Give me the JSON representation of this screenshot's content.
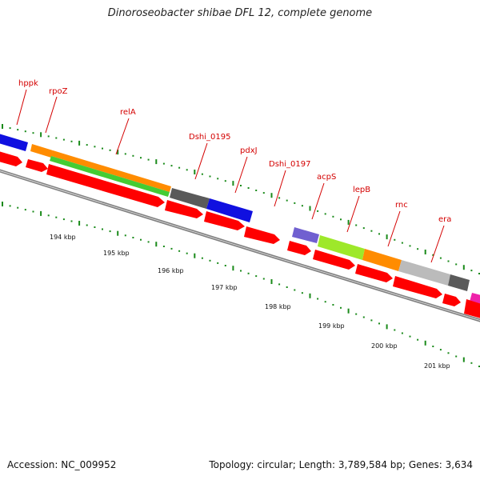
{
  "title": "Dinoroseobacter shibae DFL 12, complete genome",
  "footer": {
    "accession": "Accession: NC_009952",
    "summary": "Topology: circular; Length: 3,789,584 bp; Genes: 3,634"
  },
  "gene_labels": [
    "hppk",
    "rpoZ",
    "relA",
    "Dshi_0195",
    "pdxJ",
    "Dshi_0197",
    "acpS",
    "lepB",
    "rnc",
    "era"
  ],
  "kbp_labels": [
    "194 kbp",
    "195 kbp",
    "196 kbp",
    "197 kbp",
    "198 kbp",
    "199 kbp",
    "200 kbp",
    "201 kbp"
  ],
  "colors": {
    "cds": "#ff0000",
    "label": "#d40000",
    "tick": "#1a8a1a",
    "backbone": "#808080",
    "blue": "#1010e0",
    "orange": "#ff8c00",
    "green": "#44cc33",
    "darkgray": "#5a5a5a",
    "purple": "#7060d0",
    "lime": "#9ee82a",
    "lightgray": "#bbbbbb",
    "magenta": "#ee22aa"
  }
}
